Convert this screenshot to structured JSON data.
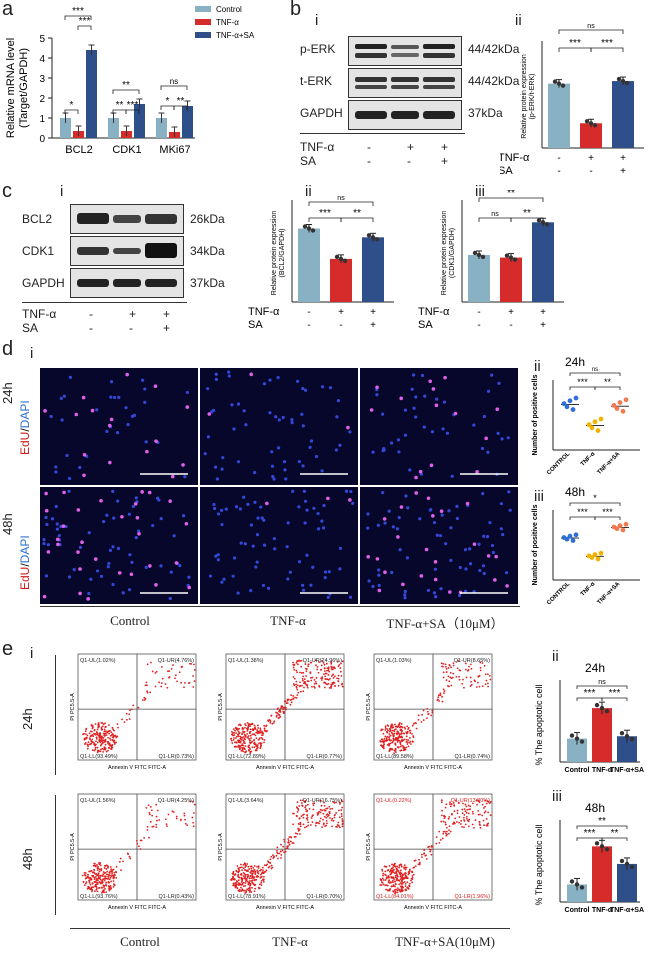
{
  "panels": {
    "a": "a",
    "b": "b",
    "c": "c",
    "d": "d",
    "e": "e",
    "b_i": "i",
    "b_ii": "ii",
    "c_i": "i",
    "c_ii": "ii",
    "c_iii": "iii",
    "d_i": "i",
    "d_ii": "ii",
    "d_iii": "iii",
    "e_i": "i",
    "e_ii": "ii",
    "e_iii": "iii"
  },
  "treat_labels": {
    "tnf": "TNF-α",
    "sa": "SA",
    "minus": "-",
    "plus": "+"
  },
  "chart_a": {
    "type": "bar",
    "ylabel": "Relative mRNA level\n(Target/GAPDH)",
    "ylim": [
      0,
      5
    ],
    "yticks": [
      "0",
      "1",
      "2",
      "3",
      "4",
      "5"
    ],
    "categories": [
      "BCL2",
      "CDK1",
      "MKi67"
    ],
    "series": [
      {
        "name": "Control",
        "color": "#88b2c4",
        "values": [
          1.0,
          1.0,
          1.0
        ]
      },
      {
        "name": "TNF-α",
        "color": "#d62b2b",
        "values": [
          0.35,
          0.35,
          0.3
        ]
      },
      {
        "name": "TNF-α+SA",
        "color": "#2e4f8a",
        "values": [
          4.4,
          1.7,
          1.6
        ]
      }
    ],
    "sig": [
      "*",
      "***",
      "***",
      "**",
      "**",
      "***",
      "ns",
      "*",
      "**"
    ]
  },
  "chart_bii": {
    "type": "bar",
    "ylabel": "Relative protein expression\n(p-ERK/t-ERK)",
    "ylim": [
      0,
      2.0
    ],
    "categories": [
      "Control",
      "TNF-α",
      "TNF-α+SA"
    ],
    "values": [
      1.25,
      0.48,
      1.3
    ],
    "colors": [
      "#88b2c4",
      "#d62b2b",
      "#2e4f8a"
    ],
    "sig": [
      "***",
      "***",
      "ns"
    ]
  },
  "chart_cii": {
    "type": "bar",
    "ylabel": "Relative protein expression\n(BCL2/GAPDH)",
    "ylim": [
      0,
      1.0
    ],
    "categories": [
      "Control",
      "TNF-α",
      "TNF-α+SA"
    ],
    "values": [
      0.75,
      0.44,
      0.66
    ],
    "colors": [
      "#88b2c4",
      "#d62b2b",
      "#2e4f8a"
    ],
    "sig": [
      "***",
      "**",
      "ns"
    ]
  },
  "chart_ciii": {
    "type": "bar",
    "ylabel": "Relative protein expression\n(CDK1/GAPDH)",
    "ylim": [
      0,
      1.5
    ],
    "categories": [
      "Control",
      "TNF-α",
      "TNF-α+SA"
    ],
    "values": [
      0.72,
      0.68,
      1.22
    ],
    "colors": [
      "#88b2c4",
      "#d62b2b",
      "#2e4f8a"
    ],
    "sig": [
      "ns",
      "**",
      "**"
    ]
  },
  "blot_b": {
    "bands": [
      "p-ERK",
      "t-ERK",
      "GAPDH"
    ],
    "kda": [
      "44/42kDa",
      "44/42kDa",
      "37kDa"
    ]
  },
  "blot_c": {
    "bands": [
      "BCL2",
      "CDK1",
      "GAPDH"
    ],
    "kda": [
      "26kDa",
      "34kDa",
      "37kDa"
    ]
  },
  "d": {
    "row_labels": [
      "24h",
      "48h"
    ],
    "stain_edu": "EdU",
    "stain_sep": "/",
    "stain_dapi": "DAPI",
    "columns": [
      "Control",
      "TNF-α",
      "TNF-α+SA（10μM）"
    ],
    "charts": [
      {
        "title": "24h",
        "ylabel": "Number of positive cells",
        "categories": [
          "CONTROL",
          "TNF-α",
          "TNF-α+SA"
        ],
        "means": [
          26,
          14,
          25
        ],
        "colors": [
          "#2f6fd6",
          "#f0b400",
          "#f07a52"
        ],
        "sig": [
          "***",
          "**",
          "ns"
        ]
      },
      {
        "title": "48h",
        "ylabel": "Number of positive cells",
        "categories": [
          "CONTROL",
          "TNF-α",
          "TNF-α+SA"
        ],
        "means": [
          48,
          27,
          60
        ],
        "colors": [
          "#2f6fd6",
          "#f0b400",
          "#f07a52"
        ],
        "sig": [
          "***",
          "***",
          "*"
        ]
      }
    ]
  },
  "e": {
    "row_labels": [
      "24h",
      "48h"
    ],
    "columns": [
      "Control",
      "TNF-α",
      "TNF-α+SA(10μM)"
    ],
    "x_axis": "Annexin V FITC FITC-A",
    "y_axis": "PI PC5.5-A",
    "plots": [
      [
        "Q1-UL(1.02%)",
        "Q1-UR(4.76%)",
        "Q1-LL(93.49%)",
        "Q1-LR(0.73%)"
      ],
      [
        "Q1-UL(1.38%)",
        "Q1-UR(24.96%)",
        "Q1-LL(72.89%)",
        "Q1-LR(0.77%)"
      ],
      [
        "Q1-UL(1.03%)",
        "Q1-UR(8.65%)",
        "Q1-LL(89.58%)",
        "Q1-LR(0.74%)"
      ],
      [
        "Q1-UL(1.56%)",
        "Q1-UR(4.25%)",
        "Q1-LL(93.76%)",
        "Q1-LR(0.43%)"
      ],
      [
        "Q1-UL(3.64%)",
        "Q1-UR(16.75%)",
        "Q1-LL(78.91%)",
        "Q1-LR(0.70%)"
      ],
      [
        "Q1-UL(0.22%)",
        "Q1-UR(13.80%)",
        "Q1-LL(84.01%)",
        "Q1-LR(1.96%)"
      ]
    ],
    "charts": [
      {
        "title": "24h",
        "ylabel": "% The apoptotic cell",
        "categories": [
          "Control",
          "TNF-α",
          "TNF-α+SA"
        ],
        "values": [
          10,
          23,
          11
        ],
        "colors": [
          "#88b2c4",
          "#d62b2b",
          "#2e4f8a"
        ],
        "sig": [
          "***",
          "***",
          "ns"
        ]
      },
      {
        "title": "48h",
        "ylabel": "% The apoptotic cell",
        "categories": [
          "Control",
          "TNF-α",
          "TNF-α+SA"
        ],
        "values": [
          6,
          19,
          13
        ],
        "colors": [
          "#88b2c4",
          "#d62b2b",
          "#2e4f8a"
        ],
        "sig": [
          "***",
          "**",
          "**"
        ]
      }
    ]
  }
}
